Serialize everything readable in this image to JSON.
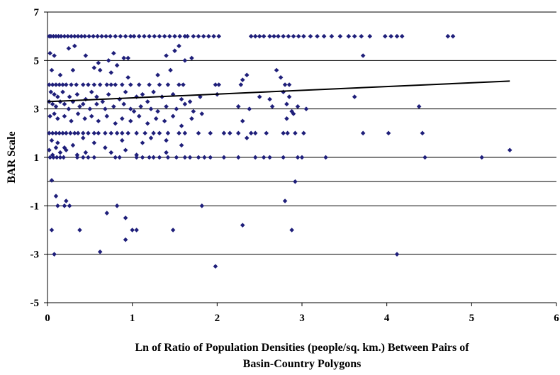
{
  "chart_data": {
    "type": "scatter",
    "title": "",
    "xlabel_lines": [
      "Ln of Ratio of Population Densities (people/sq. km.) Between Pairs of",
      "Basin-Country Polygons"
    ],
    "ylabel": "BAR Scale",
    "xlim": [
      0,
      6
    ],
    "ylim": [
      -5,
      7
    ],
    "x_ticks": [
      "0",
      "1",
      "2",
      "3",
      "4",
      "5",
      "6"
    ],
    "y_ticks": [
      "-5",
      "-3",
      "-1",
      "1",
      "3",
      "5",
      "7"
    ],
    "grid": "horizontal lines at odd y and at y = 0",
    "legend": "none",
    "marker_color": "#1f1f7a",
    "trendline": {
      "x": [
        0,
        5.45
      ],
      "y": [
        3.3,
        4.15
      ],
      "color": "#000000"
    },
    "points": [
      [
        0.02,
        6
      ],
      [
        0.04,
        6
      ],
      [
        0.07,
        6
      ],
      [
        0.1,
        6
      ],
      [
        0.13,
        6
      ],
      [
        0.16,
        6
      ],
      [
        0.2,
        6
      ],
      [
        0.24,
        6
      ],
      [
        0.28,
        6
      ],
      [
        0.32,
        6
      ],
      [
        0.36,
        6
      ],
      [
        0.4,
        6
      ],
      [
        0.44,
        6
      ],
      [
        0.49,
        6
      ],
      [
        0.54,
        6
      ],
      [
        0.59,
        6
      ],
      [
        0.64,
        6
      ],
      [
        0.69,
        6
      ],
      [
        0.74,
        6
      ],
      [
        0.8,
        6
      ],
      [
        0.86,
        6
      ],
      [
        0.92,
        6
      ],
      [
        0.98,
        6
      ],
      [
        1.02,
        6
      ],
      [
        1.08,
        6
      ],
      [
        1.14,
        6
      ],
      [
        1.2,
        6
      ],
      [
        1.26,
        6
      ],
      [
        1.32,
        6
      ],
      [
        1.38,
        6
      ],
      [
        1.44,
        6
      ],
      [
        1.5,
        6
      ],
      [
        1.56,
        6
      ],
      [
        1.62,
        6
      ],
      [
        1.65,
        6
      ],
      [
        1.72,
        6
      ],
      [
        1.78,
        6
      ],
      [
        1.84,
        6
      ],
      [
        1.9,
        6
      ],
      [
        1.96,
        6
      ],
      [
        2.02,
        6
      ],
      [
        2.4,
        6
      ],
      [
        2.45,
        6
      ],
      [
        2.5,
        6
      ],
      [
        2.55,
        6
      ],
      [
        2.62,
        6
      ],
      [
        2.67,
        6
      ],
      [
        2.72,
        6
      ],
      [
        2.78,
        6
      ],
      [
        2.84,
        6
      ],
      [
        2.9,
        6
      ],
      [
        2.96,
        6
      ],
      [
        3.02,
        6
      ],
      [
        3.1,
        6
      ],
      [
        3.18,
        6
      ],
      [
        3.26,
        6
      ],
      [
        3.35,
        6
      ],
      [
        3.45,
        6
      ],
      [
        3.55,
        6
      ],
      [
        3.62,
        6
      ],
      [
        3.7,
        6
      ],
      [
        3.8,
        6
      ],
      [
        3.98,
        6
      ],
      [
        4.05,
        6
      ],
      [
        4.12,
        6
      ],
      [
        4.18,
        6
      ],
      [
        4.72,
        6
      ],
      [
        4.78,
        6
      ],
      [
        0.03,
        5.3
      ],
      [
        0.08,
        5.2
      ],
      [
        0.25,
        5.5
      ],
      [
        0.32,
        5.6
      ],
      [
        0.45,
        5.2
      ],
      [
        0.6,
        4.9
      ],
      [
        0.72,
        5
      ],
      [
        0.78,
        5.3
      ],
      [
        0.9,
        5.1
      ],
      [
        0.95,
        5.1
      ],
      [
        1.4,
        5.2
      ],
      [
        1.5,
        5.4
      ],
      [
        1.55,
        5.6
      ],
      [
        1.62,
        5
      ],
      [
        1.7,
        5.1
      ],
      [
        3.72,
        5.2
      ],
      [
        0.05,
        4.6
      ],
      [
        0.15,
        4.4
      ],
      [
        0.3,
        4.6
      ],
      [
        0.55,
        4.7
      ],
      [
        0.62,
        4.6
      ],
      [
        0.75,
        4.5
      ],
      [
        0.82,
        4.8
      ],
      [
        0.95,
        4.3
      ],
      [
        1.3,
        4.4
      ],
      [
        1.45,
        4.6
      ],
      [
        2.3,
        4.2
      ],
      [
        2.35,
        4.4
      ],
      [
        2.7,
        4.6
      ],
      [
        2.75,
        4.3
      ],
      [
        0.02,
        4
      ],
      [
        0.06,
        4
      ],
      [
        0.1,
        4
      ],
      [
        0.14,
        4
      ],
      [
        0.18,
        4
      ],
      [
        0.22,
        4
      ],
      [
        0.28,
        4
      ],
      [
        0.34,
        4
      ],
      [
        0.42,
        4
      ],
      [
        0.48,
        4
      ],
      [
        0.55,
        4
      ],
      [
        0.62,
        4
      ],
      [
        0.7,
        4
      ],
      [
        0.75,
        4
      ],
      [
        0.8,
        4
      ],
      [
        0.88,
        4
      ],
      [
        0.98,
        4
      ],
      [
        1.08,
        4
      ],
      [
        1.2,
        4
      ],
      [
        1.32,
        4
      ],
      [
        1.42,
        4
      ],
      [
        1.55,
        4
      ],
      [
        1.6,
        4
      ],
      [
        1.98,
        4
      ],
      [
        2.02,
        4
      ],
      [
        2.28,
        4
      ],
      [
        2.8,
        4
      ],
      [
        2.85,
        4
      ],
      [
        0.04,
        3.7
      ],
      [
        0.08,
        3.6
      ],
      [
        0.12,
        3.5
      ],
      [
        0.18,
        3.7
      ],
      [
        0.26,
        3.5
      ],
      [
        0.35,
        3.6
      ],
      [
        0.45,
        3.4
      ],
      [
        0.52,
        3.7
      ],
      [
        0.58,
        3.5
      ],
      [
        0.65,
        3.3
      ],
      [
        0.72,
        3.6
      ],
      [
        0.85,
        3.4
      ],
      [
        0.92,
        3.7
      ],
      [
        1.05,
        3.5
      ],
      [
        1.12,
        3.6
      ],
      [
        1.18,
        3.3
      ],
      [
        1.25,
        3.7
      ],
      [
        1.35,
        3.5
      ],
      [
        1.48,
        3.6
      ],
      [
        1.58,
        3.4
      ],
      [
        1.68,
        3.3
      ],
      [
        1.8,
        3.5
      ],
      [
        2.0,
        3.6
      ],
      [
        2.5,
        3.5
      ],
      [
        2.62,
        3.4
      ],
      [
        2.78,
        3.7
      ],
      [
        2.85,
        3.5
      ],
      [
        3.62,
        3.5
      ],
      [
        0.02,
        3.3
      ],
      [
        0.06,
        3.2
      ],
      [
        0.1,
        3.1
      ],
      [
        0.15,
        3.3
      ],
      [
        0.2,
        3.2
      ],
      [
        0.25,
        3.0
      ],
      [
        0.3,
        3.3
      ],
      [
        0.38,
        3.1
      ],
      [
        0.42,
        3.2
      ],
      [
        0.5,
        3.0
      ],
      [
        0.58,
        3.2
      ],
      [
        0.68,
        3.0
      ],
      [
        0.78,
        3.1
      ],
      [
        0.9,
        3.2
      ],
      [
        0.98,
        3.0
      ],
      [
        1.02,
        2.9
      ],
      [
        1.1,
        3.1
      ],
      [
        1.22,
        3.0
      ],
      [
        1.3,
        2.9
      ],
      [
        1.4,
        3.1
      ],
      [
        1.52,
        3.0
      ],
      [
        1.62,
        3.2
      ],
      [
        1.72,
        2.9
      ],
      [
        1.82,
        2.8
      ],
      [
        2.25,
        3.1
      ],
      [
        2.38,
        3.0
      ],
      [
        2.65,
        3.1
      ],
      [
        2.82,
        3.2
      ],
      [
        2.88,
        2.9
      ],
      [
        2.95,
        3.1
      ],
      [
        3.05,
        3.0
      ],
      [
        4.38,
        3.1
      ],
      [
        0.03,
        2.7
      ],
      [
        0.08,
        2.8
      ],
      [
        0.12,
        2.6
      ],
      [
        0.2,
        2.7
      ],
      [
        0.28,
        2.5
      ],
      [
        0.36,
        2.8
      ],
      [
        0.44,
        2.6
      ],
      [
        0.52,
        2.7
      ],
      [
        0.6,
        2.5
      ],
      [
        0.7,
        2.7
      ],
      [
        0.8,
        2.4
      ],
      [
        0.88,
        2.6
      ],
      [
        0.98,
        2.5
      ],
      [
        1.08,
        2.7
      ],
      [
        1.18,
        2.4
      ],
      [
        1.28,
        2.6
      ],
      [
        1.38,
        2.5
      ],
      [
        1.48,
        2.7
      ],
      [
        1.58,
        2.3
      ],
      [
        1.7,
        2.6
      ],
      [
        2.3,
        2.5
      ],
      [
        2.82,
        2.6
      ],
      [
        2.9,
        2.8
      ],
      [
        0.02,
        2
      ],
      [
        0.06,
        2
      ],
      [
        0.1,
        2
      ],
      [
        0.14,
        2
      ],
      [
        0.18,
        2
      ],
      [
        0.22,
        2
      ],
      [
        0.27,
        2
      ],
      [
        0.32,
        2
      ],
      [
        0.36,
        2
      ],
      [
        0.42,
        2
      ],
      [
        0.48,
        2
      ],
      [
        0.55,
        2
      ],
      [
        0.6,
        2
      ],
      [
        0.68,
        2
      ],
      [
        0.75,
        2
      ],
      [
        0.82,
        2
      ],
      [
        0.88,
        2
      ],
      [
        0.95,
        2
      ],
      [
        1.05,
        2
      ],
      [
        1.15,
        2
      ],
      [
        1.25,
        2
      ],
      [
        1.32,
        2
      ],
      [
        1.42,
        2
      ],
      [
        1.55,
        2
      ],
      [
        1.62,
        2
      ],
      [
        1.78,
        2
      ],
      [
        1.92,
        2
      ],
      [
        2.08,
        2
      ],
      [
        2.15,
        2
      ],
      [
        2.25,
        2
      ],
      [
        2.4,
        2
      ],
      [
        2.45,
        2
      ],
      [
        2.58,
        2
      ],
      [
        2.78,
        2
      ],
      [
        2.83,
        2
      ],
      [
        2.92,
        2
      ],
      [
        3.02,
        2
      ],
      [
        3.72,
        2
      ],
      [
        4.02,
        2
      ],
      [
        4.42,
        2
      ],
      [
        0.05,
        1.7
      ],
      [
        0.12,
        1.6
      ],
      [
        0.2,
        1.4
      ],
      [
        0.3,
        1.5
      ],
      [
        0.42,
        1.8
      ],
      [
        0.55,
        1.6
      ],
      [
        0.68,
        1.4
      ],
      [
        0.88,
        1.7
      ],
      [
        1.12,
        1.6
      ],
      [
        1.22,
        1.8
      ],
      [
        1.4,
        1.7
      ],
      [
        1.58,
        1.5
      ],
      [
        2.35,
        1.8
      ],
      [
        0.02,
        1.3
      ],
      [
        0.06,
        1.1
      ],
      [
        0.1,
        1.4
      ],
      [
        0.15,
        1.2
      ],
      [
        0.22,
        1.3
      ],
      [
        0.35,
        1.1
      ],
      [
        0.45,
        1.2
      ],
      [
        0.75,
        1.2
      ],
      [
        0.92,
        1.3
      ],
      [
        1.05,
        1.1
      ],
      [
        1.4,
        1.2
      ],
      [
        5.45,
        1.3
      ],
      [
        0.03,
        1
      ],
      [
        0.07,
        1
      ],
      [
        0.11,
        1
      ],
      [
        0.15,
        1
      ],
      [
        0.19,
        1
      ],
      [
        0.35,
        1
      ],
      [
        0.42,
        1
      ],
      [
        0.48,
        1
      ],
      [
        0.55,
        1
      ],
      [
        0.8,
        1
      ],
      [
        0.85,
        1
      ],
      [
        1.05,
        1
      ],
      [
        1.12,
        1
      ],
      [
        1.2,
        1
      ],
      [
        1.25,
        1
      ],
      [
        1.32,
        1
      ],
      [
        1.42,
        1
      ],
      [
        1.52,
        1
      ],
      [
        1.62,
        1
      ],
      [
        1.68,
        1
      ],
      [
        1.78,
        1
      ],
      [
        1.85,
        1
      ],
      [
        1.92,
        1
      ],
      [
        2.08,
        1
      ],
      [
        2.25,
        1
      ],
      [
        2.45,
        1
      ],
      [
        2.55,
        1
      ],
      [
        2.62,
        1
      ],
      [
        2.78,
        1
      ],
      [
        2.95,
        1
      ],
      [
        3.0,
        1
      ],
      [
        3.28,
        1
      ],
      [
        4.45,
        1
      ],
      [
        5.12,
        1
      ],
      [
        0.05,
        0.05
      ],
      [
        0.1,
        -0.6
      ],
      [
        0.22,
        -0.8
      ],
      [
        0.12,
        -1
      ],
      [
        0.2,
        -1
      ],
      [
        0.26,
        -1
      ],
      [
        0.82,
        -1
      ],
      [
        1.82,
        -1
      ],
      [
        2.8,
        -0.8
      ],
      [
        2.92,
        0
      ],
      [
        0.7,
        -1.3
      ],
      [
        0.05,
        -2
      ],
      [
        0.38,
        -2
      ],
      [
        1.0,
        -2
      ],
      [
        1.05,
        -2
      ],
      [
        1.48,
        -2
      ],
      [
        2.3,
        -1.8
      ],
      [
        2.88,
        -2
      ],
      [
        0.92,
        -1.5
      ],
      [
        0.92,
        -2.4
      ],
      [
        0.62,
        -2.9
      ],
      [
        0.08,
        -3
      ],
      [
        4.12,
        -3
      ],
      [
        1.98,
        -3.5
      ]
    ]
  }
}
